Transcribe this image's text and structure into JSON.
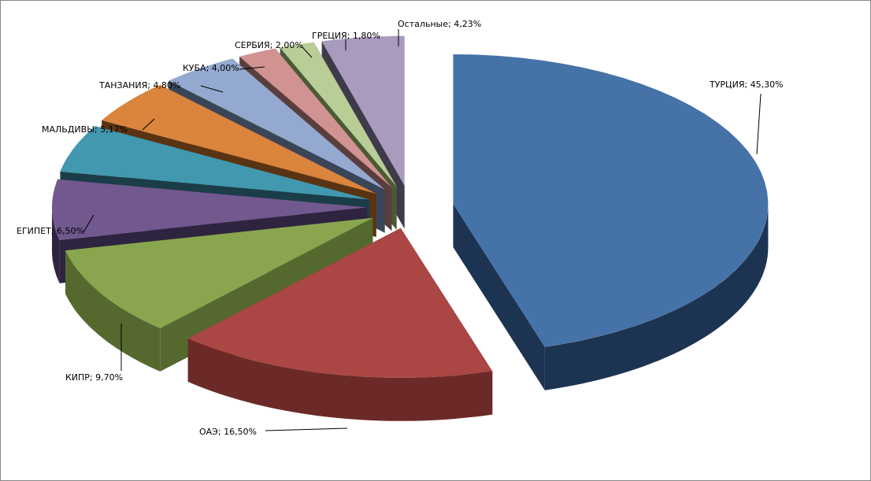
{
  "chart_data": {
    "type": "pie",
    "style": "3d-exploded",
    "title": "",
    "legend": "none",
    "slices": [
      {
        "label": "ТУРЦИЯ",
        "value": 45.3,
        "text": "ТУРЦИЯ; 45,30%",
        "color": "#4572a7",
        "side": "#1d3352"
      },
      {
        "label": "ОАЭ",
        "value": 16.5,
        "text": "ОАЭ; 16,50%",
        "color": "#aa4643",
        "side": "#6b2a28"
      },
      {
        "label": "КИПР",
        "value": 9.7,
        "text": "КИПР; 9,70%",
        "color": "#89a54e",
        "side": "#55692f"
      },
      {
        "label": "ЕГИПЕТ",
        "value": 6.5,
        "text": "ЕГИПЕТ; 6,50%",
        "color": "#71588f",
        "side": "#2e2440"
      },
      {
        "label": "МАЛЬДИВЫ",
        "value": 5.17,
        "text": "МАЛЬДИВЫ; 5,17%",
        "color": "#4198af",
        "side": "#1b3d47"
      },
      {
        "label": "ТАНЗАНИЯ",
        "value": 4.8,
        "text": "ТАНЗАНИЯ; 4,80%",
        "color": "#db843d",
        "side": "#5a3412"
      },
      {
        "label": "КУБА",
        "value": 4.0,
        "text": "КУБА; 4,00%",
        "color": "#93a9cf",
        "side": "#3a4558"
      },
      {
        "label": "СЕРБИЯ",
        "value": 2.0,
        "text": "СЕРБИЯ; 2,00%",
        "color": "#d19392",
        "side": "#5a3d3d"
      },
      {
        "label": "ГРЕЦИЯ",
        "value": 1.8,
        "text": "ГРЕЦИЯ; 1,80%",
        "color": "#b9cd96",
        "side": "#4b5a35"
      },
      {
        "label": "Остальные",
        "value": 4.23,
        "text": "Остальные; 4,23%",
        "color": "#a99bbd",
        "side": "#3f3a4a"
      }
    ]
  }
}
